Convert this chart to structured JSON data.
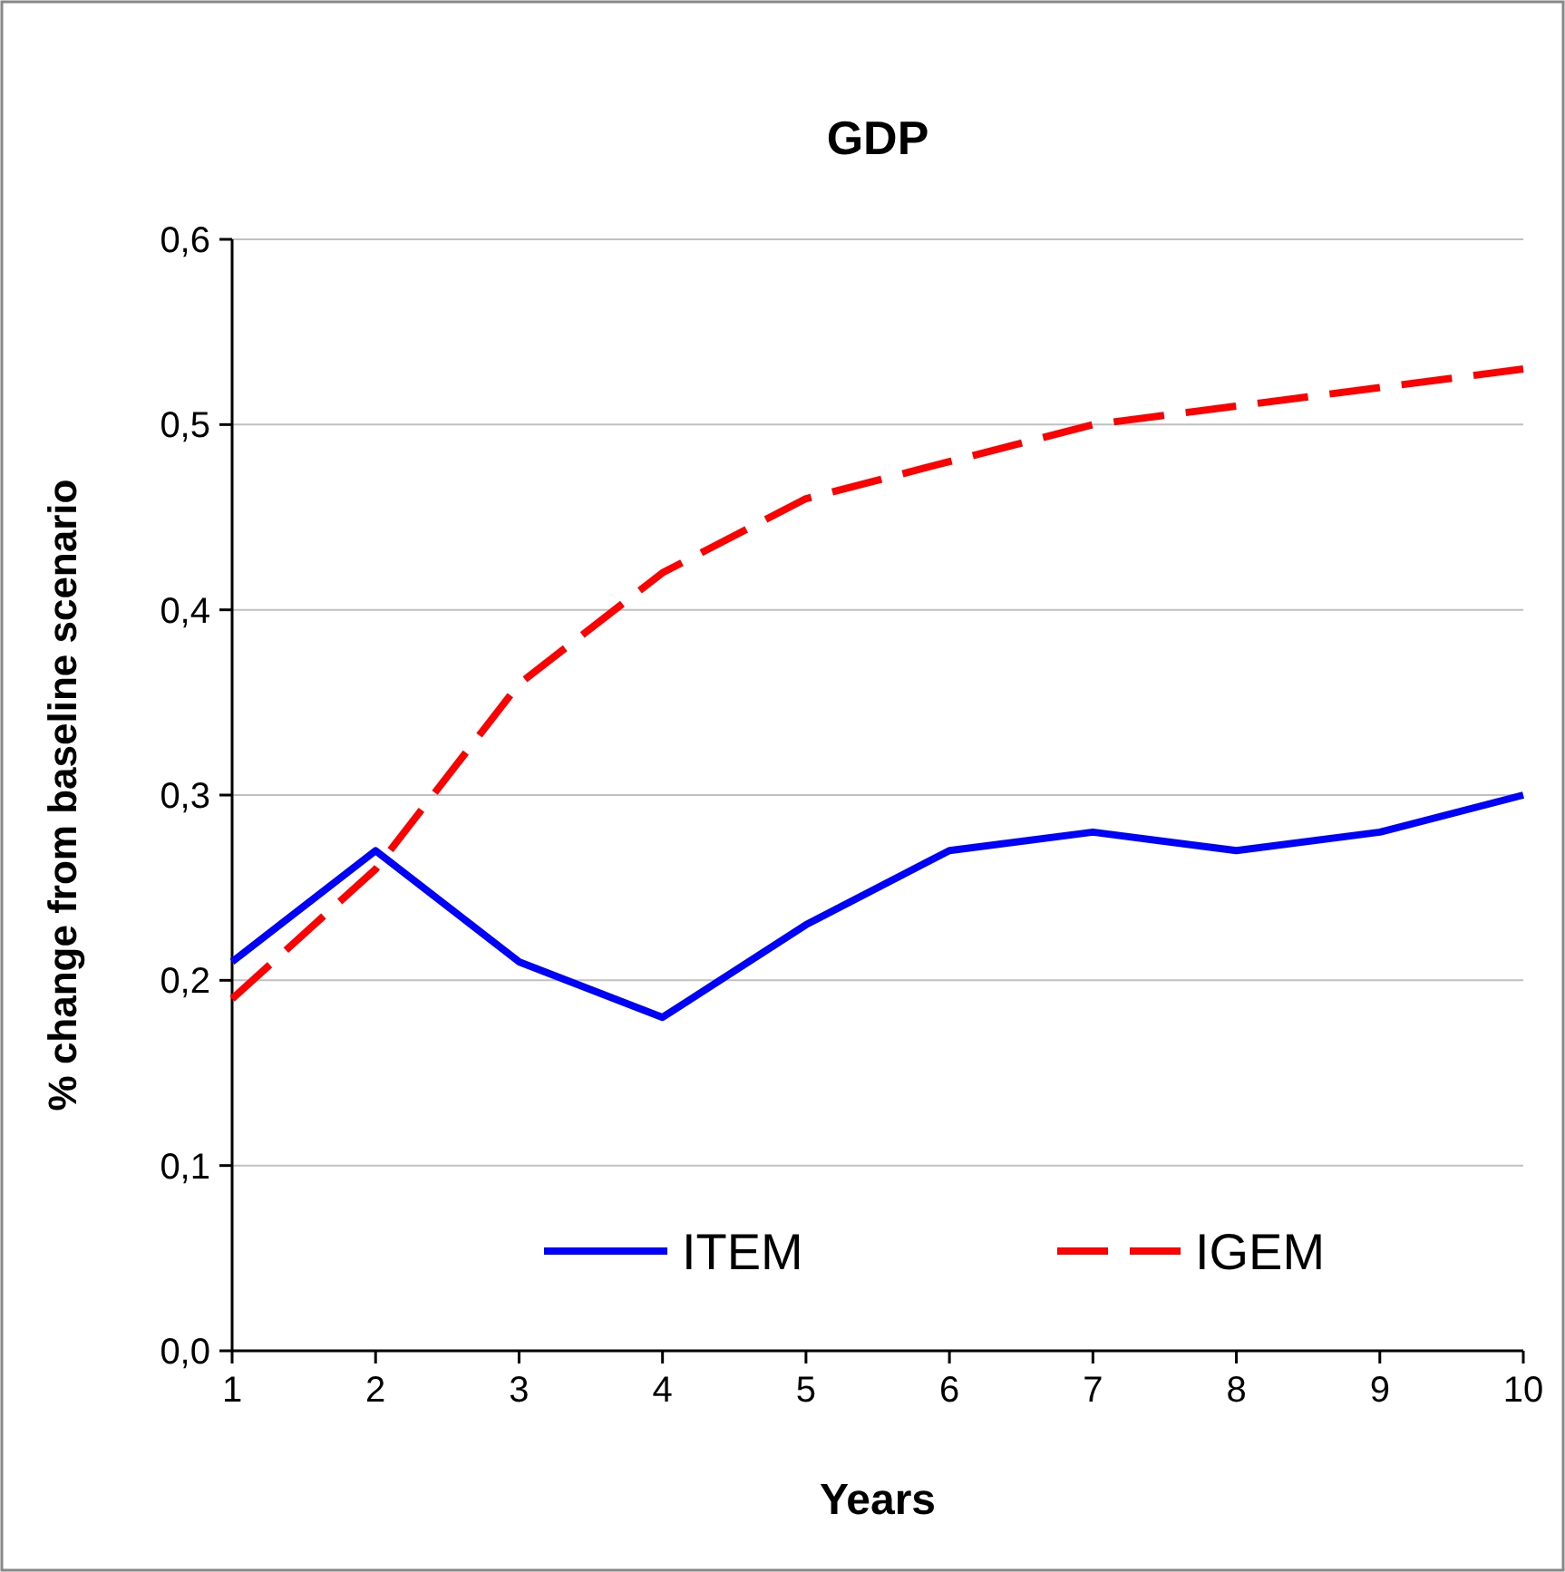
{
  "chart_data": {
    "type": "line",
    "title": "GDP",
    "xlabel": "Years",
    "ylabel": "% change from baseline scenario",
    "x": [
      1,
      2,
      3,
      4,
      5,
      6,
      7,
      8,
      9,
      10
    ],
    "series": [
      {
        "name": "ITEM",
        "color": "#0000ff",
        "line_style": "solid",
        "values": [
          0.21,
          0.27,
          0.21,
          0.18,
          0.23,
          0.27,
          0.28,
          0.27,
          0.28,
          0.3
        ]
      },
      {
        "name": "IGEM",
        "color": "#ff0000",
        "line_style": "dashed",
        "values": [
          0.19,
          0.26,
          0.36,
          0.42,
          0.46,
          0.48,
          0.5,
          0.51,
          0.52,
          0.53
        ]
      }
    ],
    "xlim": [
      1,
      10
    ],
    "xticks": [
      1,
      2,
      3,
      4,
      5,
      6,
      7,
      8,
      9,
      10
    ],
    "ylim": [
      0,
      0.6
    ],
    "yticks": [
      {
        "value": 0,
        "label": "0,0"
      },
      {
        "value": 0.1,
        "label": "0,1"
      },
      {
        "value": 0.2,
        "label": "0,2"
      },
      {
        "value": 0.3,
        "label": "0,3"
      },
      {
        "value": 0.4,
        "label": "0,4"
      },
      {
        "value": 0.5,
        "label": "0,5"
      },
      {
        "value": 0.6,
        "label": "0,6"
      }
    ],
    "grid": "y",
    "legend": "bottom"
  }
}
